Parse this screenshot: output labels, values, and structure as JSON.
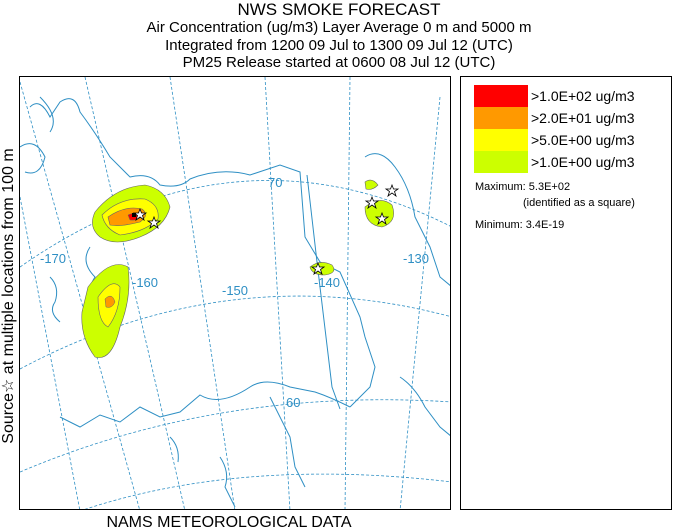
{
  "title": {
    "line1": "NWS SMOKE FORECAST",
    "line2": "Air Concentration (ug/m3) Layer Average     0 m and  5000 m",
    "line3": "Integrated from 1200 09 Jul to 1300 09 Jul 12 (UTC)",
    "line4": "PM25 Release started at 0600 08 Jul 12 (UTC)"
  },
  "side_label": "Source☆    at multiple locations      from   100 m",
  "footer": "NAMS METEOROLOGICAL DATA",
  "map": {
    "grid_color": "#2e8fc4",
    "coast_color": "#2e8fc4",
    "grid_labels": [
      "-170",
      "-160",
      "-150",
      "-140",
      "-130",
      "70",
      "60"
    ]
  },
  "legend": {
    "entries": [
      {
        "label": ">1.0E+02 ug/m3",
        "color": "#ff0000"
      },
      {
        "label": ">2.0E+01 ug/m3",
        "color": "#ff9900"
      },
      {
        "label": ">5.0E+00 ug/m3",
        "color": "#ffff00"
      },
      {
        "label": ">1.0E+00 ug/m3",
        "color": "#ccff00"
      }
    ],
    "maximum": "Maximum: 5.3E+02",
    "maximum_note": "(identified as a square)",
    "minimum": "Minimum: 3.4E-19"
  }
}
